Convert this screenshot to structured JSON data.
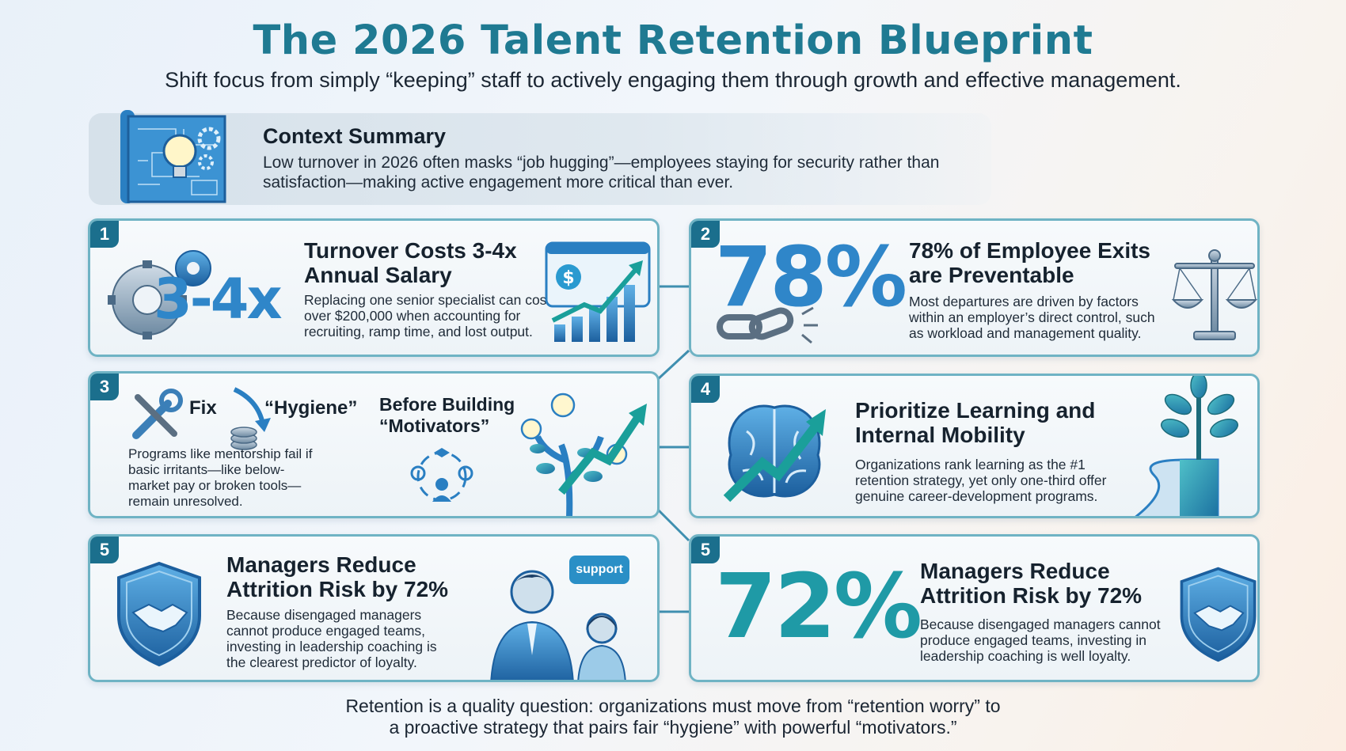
{
  "header": {
    "title": "The 2026 Talent Retention Blueprint",
    "subtitle": "Shift focus from simply “keeping” staff to actively engaging them through growth and effective management."
  },
  "context": {
    "title": "Context Summary",
    "text": "Low turnover in 2026 often masks “job hugging”—employees staying for security rather than satisfaction—making active engagement more critical than ever.",
    "icon": "blueprint-lightbulb-icon"
  },
  "cards": [
    {
      "number": "1",
      "stat": "3-4x",
      "title": "Turnover Costs 3-4x Annual Salary",
      "text": "Replacing one senior specialist can cost over $200,000 when accounting for recruiting, ramp time, and lost output.",
      "icons": [
        "gears-icon",
        "growth-chart-icon"
      ]
    },
    {
      "number": "2",
      "stat": "78%",
      "title": "78% of Employee Exits are Preventable",
      "text": "Most departures are driven by factors within an employer’s direct control, such as workload and management quality.",
      "icons": [
        "broken-chain-icon",
        "scales-icon"
      ]
    },
    {
      "number": "3",
      "fix_label": "Fix",
      "hygiene_label": "“Hygiene”",
      "title": "Before Building “Motivators”",
      "text": "Programs like mentorship fail if basic irritants—like below-market pay or broken tools—remain unresolved.",
      "icons": [
        "tools-icon",
        "coins-down-icon",
        "mentorship-cycle-icon",
        "idea-tree-icon"
      ]
    },
    {
      "number": "4",
      "title": "Prioritize Learning and Internal Mobility",
      "text": "Organizations rank learning as the #1 retention strategy, yet only one-third offer genuine career-development programs.",
      "icons": [
        "brain-growth-icon",
        "plant-path-icon"
      ]
    },
    {
      "number": "5",
      "title": "Managers Reduce Attrition Risk by 72%",
      "text": "Because disengaged managers cannot produce engaged teams, investing in leadership coaching is the clearest predictor of loyalty.",
      "bubble": "support",
      "icons": [
        "handshake-shield-icon",
        "manager-employee-icon"
      ]
    },
    {
      "number": "5",
      "stat": "72%",
      "title": "Managers Reduce Attrition Risk by 72%",
      "text": "Because disengaged managers cannot produce engaged teams, investing in leadership coaching is well loyalty.",
      "icons": [
        "handshake-shield-icon"
      ]
    }
  ],
  "footer": {
    "line1": "Retention is a quality question: organizations must move from “retention worry” to",
    "line2": "a proactive strategy that pairs fair “hygiene” with powerful “motivators.”"
  },
  "colors": {
    "title": "#1f7a92",
    "accent": "#2f86c9",
    "badge": "#1b6f8d",
    "border": "#6fb3c4"
  }
}
